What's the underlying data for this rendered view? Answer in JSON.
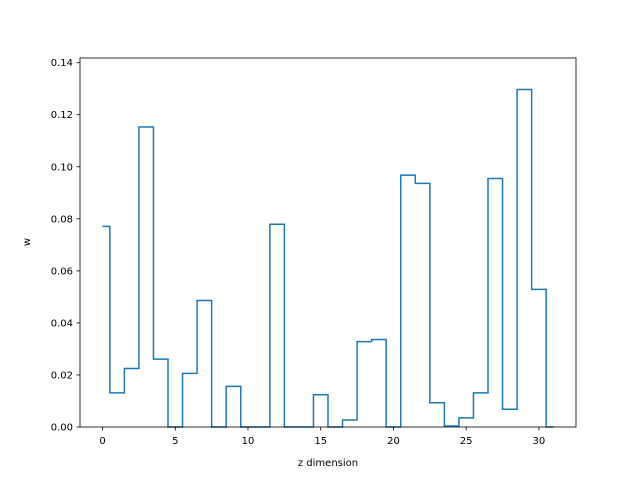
{
  "chart_data": {
    "type": "line",
    "drawstyle": "steps-mid",
    "xlabel": "z dimension",
    "ylabel": "w",
    "xlim": [
      -1.55,
      32.55
    ],
    "ylim": [
      0,
      0.1418
    ],
    "xticks": [
      0,
      5,
      10,
      15,
      20,
      25,
      30
    ],
    "xtick_labels": [
      "0",
      "5",
      "10",
      "15",
      "20",
      "25",
      "30"
    ],
    "yticks": [
      0.0,
      0.02,
      0.04,
      0.06,
      0.08,
      0.1,
      0.12,
      0.14
    ],
    "ytick_labels": [
      "0.00",
      "0.02",
      "0.04",
      "0.06",
      "0.08",
      "0.10",
      "0.12",
      "0.14"
    ],
    "grid": false,
    "color": "#1f77b4",
    "series": [
      {
        "x": [
          0,
          1,
          2,
          3,
          4,
          5,
          6,
          7,
          8,
          9,
          10,
          11,
          12,
          13,
          14,
          15,
          16,
          17,
          18,
          19,
          20,
          21,
          22,
          23,
          24,
          25,
          26,
          27,
          28,
          29,
          30,
          31
        ],
        "values": [
          0.0771,
          0.0131,
          0.0225,
          0.1153,
          0.0261,
          0.0,
          0.0206,
          0.0486,
          0.0,
          0.0156,
          0.0,
          0.0,
          0.0779,
          0.0,
          0.0,
          0.0124,
          0.0,
          0.0027,
          0.0328,
          0.0336,
          0.0,
          0.0968,
          0.0936,
          0.0093,
          0.0004,
          0.0035,
          0.0131,
          0.0955,
          0.0068,
          0.1297,
          0.0529,
          0.0
        ]
      }
    ]
  }
}
